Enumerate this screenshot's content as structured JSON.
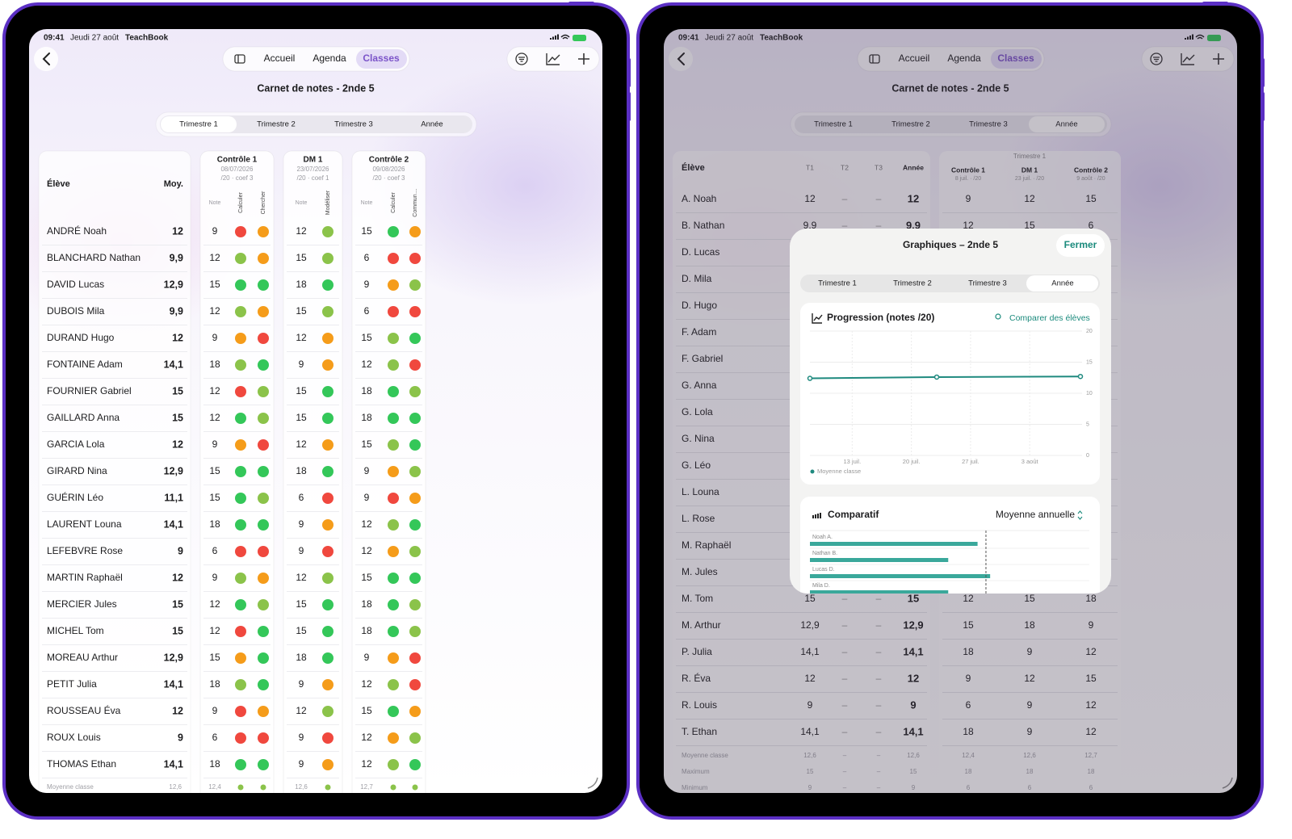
{
  "status": {
    "time": "09:41",
    "date": "Jeudi 27 août",
    "app": "TeachBook"
  },
  "nav": [
    "Accueil",
    "Agenda",
    "Classes"
  ],
  "title": "Carnet de notes - 2nde 5",
  "periods": [
    "Trimestre 1",
    "Trimestre 2",
    "Trimestre 3",
    "Année"
  ],
  "level_colors": [
    "#f0483e",
    "#f59c1a",
    "#8bc34a",
    "#34c759"
  ],
  "gradebook": {
    "student_header": "Élève",
    "average_header": "Moy.",
    "note_label": "Note",
    "assessments": [
      {
        "name": "Contrôle 1",
        "date": "08/07/2026",
        "info": "/20 · coef 3",
        "skills": [
          "Calculer",
          "Chercher"
        ]
      },
      {
        "name": "DM 1",
        "date": "23/07/2026",
        "info": "/20 · coef 1",
        "skills": [
          "Modéliser"
        ]
      },
      {
        "name": "Contrôle 2",
        "date": "09/08/2026",
        "info": "/20 · coef 3",
        "skills": [
          "Calculer",
          "Commun…"
        ]
      }
    ],
    "rows": [
      {
        "name": "ANDRÉ Noah",
        "average": "12",
        "notes": [
          "9",
          "12",
          "15"
        ],
        "levels": [
          [
            0,
            1
          ],
          [
            2
          ],
          [
            3,
            1
          ]
        ]
      },
      {
        "name": "BLANCHARD Nathan",
        "average": "9,9",
        "notes": [
          "12",
          "15",
          "6"
        ],
        "levels": [
          [
            2,
            1
          ],
          [
            2
          ],
          [
            0,
            0
          ]
        ]
      },
      {
        "name": "DAVID Lucas",
        "average": "12,9",
        "notes": [
          "15",
          "18",
          "9"
        ],
        "levels": [
          [
            3,
            3
          ],
          [
            3
          ],
          [
            1,
            2
          ]
        ]
      },
      {
        "name": "DUBOIS Mila",
        "average": "9,9",
        "notes": [
          "12",
          "15",
          "6"
        ],
        "levels": [
          [
            2,
            1
          ],
          [
            2
          ],
          [
            0,
            0
          ]
        ]
      },
      {
        "name": "DURAND Hugo",
        "average": "12",
        "notes": [
          "9",
          "12",
          "15"
        ],
        "levels": [
          [
            1,
            0
          ],
          [
            1
          ],
          [
            2,
            3
          ]
        ]
      },
      {
        "name": "FONTAINE Adam",
        "average": "14,1",
        "notes": [
          "18",
          "9",
          "12"
        ],
        "levels": [
          [
            2,
            3
          ],
          [
            1
          ],
          [
            2,
            0
          ]
        ]
      },
      {
        "name": "FOURNIER Gabriel",
        "average": "15",
        "notes": [
          "12",
          "15",
          "18"
        ],
        "levels": [
          [
            0,
            2
          ],
          [
            3
          ],
          [
            3,
            2
          ]
        ]
      },
      {
        "name": "GAILLARD Anna",
        "average": "15",
        "notes": [
          "12",
          "15",
          "18"
        ],
        "levels": [
          [
            3,
            2
          ],
          [
            3
          ],
          [
            3,
            3
          ]
        ]
      },
      {
        "name": "GARCIA Lola",
        "average": "12",
        "notes": [
          "9",
          "12",
          "15"
        ],
        "levels": [
          [
            1,
            0
          ],
          [
            1
          ],
          [
            2,
            3
          ]
        ]
      },
      {
        "name": "GIRARD Nina",
        "average": "12,9",
        "notes": [
          "15",
          "18",
          "9"
        ],
        "levels": [
          [
            3,
            3
          ],
          [
            3
          ],
          [
            1,
            2
          ]
        ]
      },
      {
        "name": "GUÉRIN Léo",
        "average": "11,1",
        "notes": [
          "15",
          "6",
          "9"
        ],
        "levels": [
          [
            3,
            2
          ],
          [
            0
          ],
          [
            0,
            1
          ]
        ]
      },
      {
        "name": "LAURENT Louna",
        "average": "14,1",
        "notes": [
          "18",
          "9",
          "12"
        ],
        "levels": [
          [
            3,
            3
          ],
          [
            1
          ],
          [
            2,
            3
          ]
        ]
      },
      {
        "name": "LEFEBVRE Rose",
        "average": "9",
        "notes": [
          "6",
          "9",
          "12"
        ],
        "levels": [
          [
            0,
            0
          ],
          [
            0
          ],
          [
            1,
            2
          ]
        ]
      },
      {
        "name": "MARTIN Raphaël",
        "average": "12",
        "notes": [
          "9",
          "12",
          "15"
        ],
        "levels": [
          [
            2,
            1
          ],
          [
            2
          ],
          [
            3,
            3
          ]
        ]
      },
      {
        "name": "MERCIER Jules",
        "average": "15",
        "notes": [
          "12",
          "15",
          "18"
        ],
        "levels": [
          [
            3,
            2
          ],
          [
            3
          ],
          [
            3,
            2
          ]
        ]
      },
      {
        "name": "MICHEL Tom",
        "average": "15",
        "notes": [
          "12",
          "15",
          "18"
        ],
        "levels": [
          [
            0,
            3
          ],
          [
            3
          ],
          [
            3,
            2
          ]
        ]
      },
      {
        "name": "MOREAU Arthur",
        "average": "12,9",
        "notes": [
          "15",
          "18",
          "9"
        ],
        "levels": [
          [
            1,
            3
          ],
          [
            3
          ],
          [
            1,
            0
          ]
        ]
      },
      {
        "name": "PETIT Julia",
        "average": "14,1",
        "notes": [
          "18",
          "9",
          "12"
        ],
        "levels": [
          [
            2,
            3
          ],
          [
            1
          ],
          [
            2,
            0
          ]
        ]
      },
      {
        "name": "ROUSSEAU Éva",
        "average": "12",
        "notes": [
          "9",
          "12",
          "15"
        ],
        "levels": [
          [
            0,
            1
          ],
          [
            2
          ],
          [
            3,
            1
          ]
        ]
      },
      {
        "name": "ROUX Louis",
        "average": "9",
        "notes": [
          "6",
          "9",
          "12"
        ],
        "levels": [
          [
            0,
            0
          ],
          [
            0
          ],
          [
            1,
            2
          ]
        ]
      },
      {
        "name": "THOMAS Ethan",
        "average": "14,1",
        "notes": [
          "18",
          "9",
          "12"
        ],
        "levels": [
          [
            3,
            3
          ],
          [
            1
          ],
          [
            2,
            3
          ]
        ]
      }
    ],
    "footer": {
      "name": "Moyenne classe",
      "average": "12,6",
      "notes": [
        "12,4",
        "12,6",
        "12,7"
      ]
    }
  },
  "year_view": {
    "student_header": "Élève",
    "period_headers": [
      "T1",
      "T2",
      "T3",
      "Année"
    ],
    "group_title": "Trimestre 1",
    "assessments": [
      {
        "name": "Contrôle 1",
        "info": "8 juil. · /20"
      },
      {
        "name": "DM 1",
        "info": "23 juil. · /20"
      },
      {
        "name": "Contrôle 2",
        "info": "9 août · /20"
      }
    ],
    "rows": [
      {
        "name": "A. Noah",
        "cells": [
          "12",
          "–",
          "–",
          "12",
          "9",
          "12",
          "15"
        ]
      },
      {
        "name": "B. Nathan",
        "cells": [
          "9,9",
          "–",
          "–",
          "9,9",
          "12",
          "15",
          "6"
        ]
      },
      {
        "name": "D. Lucas"
      },
      {
        "name": "D. Mila"
      },
      {
        "name": "D. Hugo"
      },
      {
        "name": "F. Adam"
      },
      {
        "name": "F. Gabriel"
      },
      {
        "name": "G. Anna"
      },
      {
        "name": "G. Lola"
      },
      {
        "name": "G. Nina"
      },
      {
        "name": "G. Léo"
      },
      {
        "name": "L. Louna"
      },
      {
        "name": "L. Rose"
      },
      {
        "name": "M. Raphaël"
      },
      {
        "name": "M. Jules"
      },
      {
        "name": "M. Tom",
        "cells": [
          "15",
          "–",
          "–",
          "15",
          "12",
          "15",
          "18"
        ]
      },
      {
        "name": "M. Arthur",
        "cells": [
          "12,9",
          "–",
          "–",
          "12,9",
          "15",
          "18",
          "9"
        ]
      },
      {
        "name": "P. Julia",
        "cells": [
          "14,1",
          "–",
          "–",
          "14,1",
          "18",
          "9",
          "12"
        ]
      },
      {
        "name": "R. Éva",
        "cells": [
          "12",
          "–",
          "–",
          "12",
          "9",
          "12",
          "15"
        ]
      },
      {
        "name": "R. Louis",
        "cells": [
          "9",
          "–",
          "–",
          "9",
          "6",
          "9",
          "12"
        ]
      },
      {
        "name": "T. Ethan",
        "cells": [
          "14,1",
          "–",
          "–",
          "14,1",
          "18",
          "9",
          "12"
        ]
      }
    ],
    "footer": [
      {
        "name": "Moyenne classe",
        "cells": [
          "12,6",
          "–",
          "–",
          "12,6",
          "12,4",
          "12,6",
          "12,7"
        ]
      },
      {
        "name": "Maximum",
        "cells": [
          "15",
          "–",
          "–",
          "15",
          "18",
          "18",
          "18"
        ]
      },
      {
        "name": "Minimum",
        "cells": [
          "9",
          "–",
          "–",
          "9",
          "6",
          "6",
          "6"
        ]
      }
    ]
  },
  "modal": {
    "title": "Graphiques – 2nde 5",
    "close": "Fermer"
  },
  "chart_data": [
    {
      "type": "line",
      "title": "Progression (notes /20)",
      "action": "Comparer des élèves",
      "x": [
        8,
        23,
        40
      ],
      "xlim": [
        8,
        40
      ],
      "xticks": [
        {
          "value": 13,
          "label": "13 juil."
        },
        {
          "value": 20,
          "label": "20 juil."
        },
        {
          "value": 27,
          "label": "27 juil."
        },
        {
          "value": 34,
          "label": "3 août"
        }
      ],
      "ylim": [
        0,
        20
      ],
      "yticks": [
        0,
        5,
        10,
        15,
        20
      ],
      "grid": true,
      "series": [
        {
          "name": "Moyenne classe",
          "color": "#1f8a7f",
          "values": [
            12.4,
            12.6,
            12.7
          ]
        }
      ]
    },
    {
      "type": "hbar",
      "title": "Comparatif",
      "selector": "Moyenne annuelle",
      "categories": [
        "Noah A.",
        "Nathan B.",
        "Lucas D.",
        "Mila D."
      ],
      "values": [
        12,
        9.9,
        12.9,
        9.9
      ],
      "xlim": [
        0,
        20
      ],
      "reference": 12.6,
      "color": "#3aa89b"
    }
  ]
}
